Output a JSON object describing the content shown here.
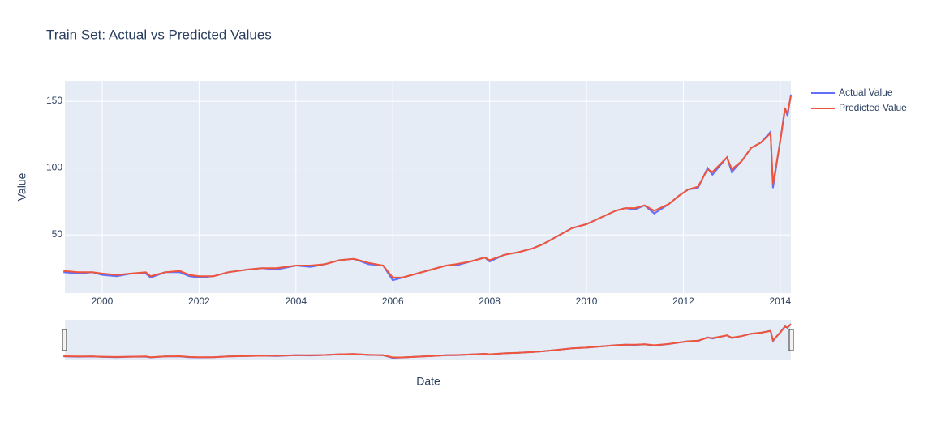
{
  "chart_data": {
    "type": "line",
    "title": "Train Set: Actual vs Predicted Values",
    "x_label": "Date",
    "y_label": "Value",
    "x": [
      1999.2,
      1999.5,
      1999.8,
      2000.0,
      2000.3,
      2000.6,
      2000.9,
      2001.0,
      2001.3,
      2001.6,
      2001.8,
      2002.0,
      2002.3,
      2002.6,
      2003.0,
      2003.3,
      2003.6,
      2004.0,
      2004.3,
      2004.6,
      2004.9,
      2005.2,
      2005.5,
      2005.8,
      2006.0,
      2006.2,
      2006.5,
      2006.8,
      2007.1,
      2007.3,
      2007.6,
      2007.9,
      2008.0,
      2008.3,
      2008.6,
      2008.9,
      2009.1,
      2009.4,
      2009.7,
      2010.0,
      2010.3,
      2010.6,
      2010.8,
      2011.0,
      2011.2,
      2011.4,
      2011.7,
      2011.9,
      2012.1,
      2012.3,
      2012.5,
      2012.6,
      2012.9,
      2013.0,
      2013.2,
      2013.4,
      2013.6,
      2013.8,
      2013.85,
      2014.0,
      2014.1,
      2014.15,
      2014.22
    ],
    "series": [
      {
        "name": "Actual Value",
        "color": "#636efa",
        "values": [
          22,
          21,
          22,
          20,
          19,
          21,
          21,
          18,
          22,
          22,
          19,
          18,
          19,
          22,
          24,
          25,
          24,
          27,
          26,
          28,
          31,
          32,
          28,
          27,
          16,
          18,
          21,
          24,
          27,
          27,
          30,
          33,
          30,
          35,
          37,
          40,
          43,
          49,
          55,
          58,
          63,
          68,
          70,
          69,
          72,
          66,
          73,
          79,
          84,
          85,
          100,
          95,
          108,
          97,
          105,
          115,
          119,
          127,
          85,
          121,
          145,
          139,
          155
        ]
      },
      {
        "name": "Predicted Value",
        "color": "#ef553b",
        "values": [
          23,
          22,
          22,
          21,
          20,
          21,
          22,
          19,
          22,
          23,
          20,
          19,
          19,
          22,
          24,
          25,
          25,
          27,
          27,
          28,
          31,
          32,
          29,
          27,
          18,
          18,
          21,
          24,
          27,
          28,
          30,
          33,
          31,
          35,
          37,
          40,
          43,
          49,
          55,
          58,
          63,
          68,
          70,
          70,
          72,
          68,
          73,
          79,
          84,
          86,
          99,
          97,
          108,
          99,
          105,
          115,
          119,
          126,
          88,
          120,
          144,
          141,
          154
        ]
      }
    ],
    "xlim": [
      1999.23,
      2014.22
    ],
    "xticks": [
      2000,
      2002,
      2004,
      2006,
      2008,
      2010,
      2012,
      2014
    ],
    "ylim": [
      6.4,
      165.2
    ],
    "yticks": [
      50,
      100,
      150
    ],
    "grid": true,
    "legend": "right",
    "range_slider": true
  }
}
